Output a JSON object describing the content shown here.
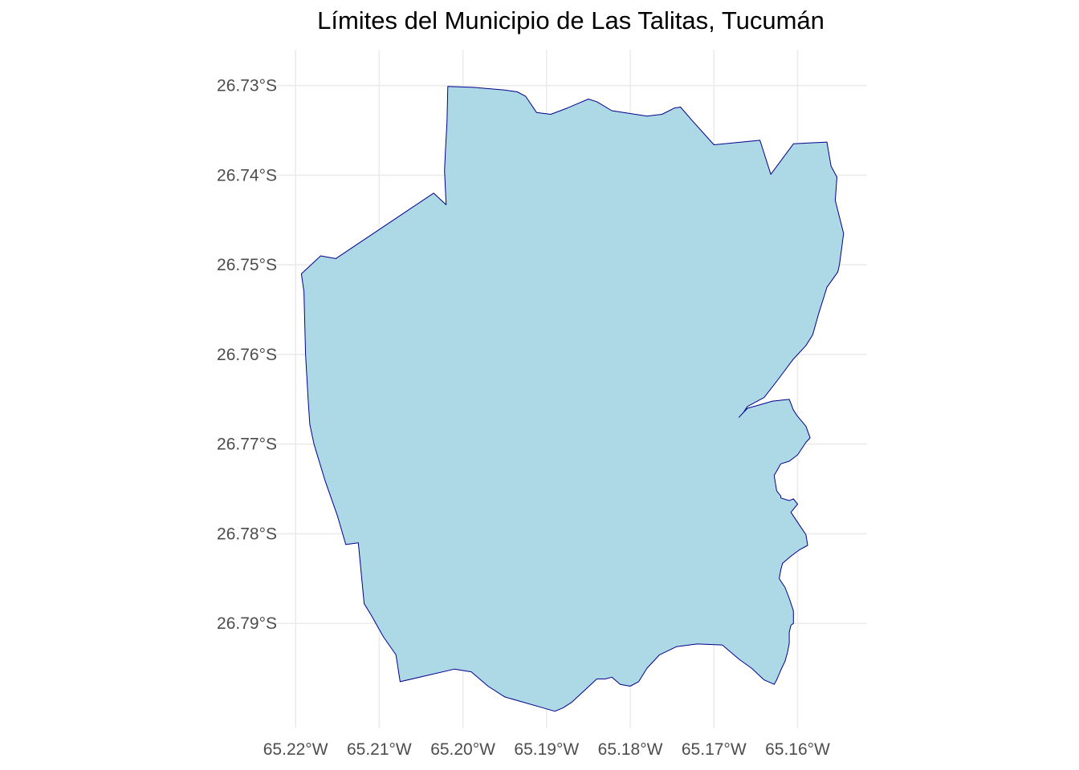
{
  "title": "Límites del Municipio de Las Talitas, Tucumán",
  "colors": {
    "fill": "#add8e6",
    "border": "#00008b",
    "grid": "#ebebeb",
    "tick_text": "#4d4d4d",
    "background": "#ffffff"
  },
  "axes": {
    "x_ticks": [
      "65.22°W",
      "65.21°W",
      "65.20°W",
      "65.19°W",
      "65.18°W",
      "65.17°W",
      "65.16°W"
    ],
    "y_ticks": [
      "26.73°S",
      "26.74°S",
      "26.75°S",
      "26.76°S",
      "26.77°S",
      "26.78°S",
      "26.79°S"
    ],
    "x_range": [
      -65.2227,
      -65.1517
    ],
    "y_range": [
      -26.8017,
      -26.726
    ],
    "grid": true
  },
  "boundary": {
    "name": "Las Talitas",
    "lon": [
      -65.2018,
      -65.1988,
      -65.195,
      -65.1935,
      -65.1925,
      -65.1912,
      -65.1895,
      -65.1875,
      -65.185,
      -65.184,
      -65.1822,
      -65.1808,
      -65.178,
      -65.1762,
      -65.1747,
      -65.174,
      -65.1725,
      -65.17,
      -65.1645,
      -65.1632,
      -65.1605,
      -65.1565,
      -65.156,
      -65.1553,
      -65.1555,
      -65.1545,
      -65.155,
      -65.1552,
      -65.1565,
      -65.157,
      -65.1575,
      -65.1582,
      -65.159,
      -65.1605,
      -65.1625,
      -65.164,
      -65.166,
      -65.1665,
      -65.167,
      -65.1665,
      -65.166,
      -65.1645,
      -65.163,
      -65.161,
      -65.1605,
      -65.16,
      -65.159,
      -65.1585,
      -65.159,
      -65.16,
      -65.161,
      -65.162,
      -65.1628,
      -65.1625,
      -65.162,
      -65.162,
      -65.161,
      -65.1605,
      -65.16,
      -65.1608,
      -65.1598,
      -65.159,
      -65.1588,
      -65.1598,
      -65.1608,
      -65.1618,
      -65.162,
      -65.1622,
      -65.1615,
      -65.161,
      -65.1605,
      -65.1605,
      -65.1605,
      -65.1608,
      -65.161,
      -65.161,
      -65.1612,
      -65.1615,
      -65.162,
      -65.1625,
      -65.1628,
      -65.164,
      -65.1655,
      -65.167,
      -65.169,
      -65.172,
      -65.1745,
      -65.1765,
      -65.178,
      -65.179,
      -65.18,
      -65.1812,
      -65.1822,
      -65.183,
      -65.184,
      -65.1855,
      -65.187,
      -65.188,
      -65.189,
      -65.1905,
      -65.195,
      -65.197,
      -65.199,
      -65.201,
      -65.2075,
      -65.208,
      -65.2095,
      -65.211,
      -65.2118,
      -65.2125,
      -65.214,
      -65.215,
      -65.2165,
      -65.2178,
      -65.2183,
      -65.2185,
      -65.2188,
      -65.219,
      -65.2193,
      -65.217,
      -65.2152,
      -65.2035,
      -65.202,
      -65.2022,
      -65.2021,
      -65.2019,
      -65.2018
    ],
    "lat": [
      -26.7301,
      -26.7302,
      -26.7305,
      -26.7307,
      -26.7312,
      -26.733,
      -26.7332,
      -26.7325,
      -26.7315,
      -26.7318,
      -26.7328,
      -26.733,
      -26.7334,
      -26.7332,
      -26.7325,
      -26.7324,
      -26.734,
      -26.7366,
      -26.7361,
      -26.7399,
      -26.7365,
      -26.7363,
      -26.739,
      -26.7402,
      -26.7428,
      -26.7465,
      -26.75,
      -26.7508,
      -26.7525,
      -26.754,
      -26.7555,
      -26.7578,
      -26.759,
      -26.7605,
      -26.763,
      -26.7648,
      -26.7658,
      -26.7665,
      -26.767,
      -26.7665,
      -26.766,
      -26.7656,
      -26.7652,
      -26.765,
      -26.7662,
      -26.7669,
      -26.768,
      -26.7693,
      -26.7698,
      -26.7712,
      -26.7719,
      -26.7722,
      -26.7735,
      -26.7752,
      -26.7758,
      -26.776,
      -26.7763,
      -26.7761,
      -26.7767,
      -26.7776,
      -26.779,
      -26.7801,
      -26.7813,
      -26.7818,
      -26.7825,
      -26.7833,
      -26.784,
      -26.785,
      -26.786,
      -26.7872,
      -26.7886,
      -26.7893,
      -26.79,
      -26.7902,
      -26.791,
      -26.7922,
      -26.7932,
      -26.7942,
      -26.7952,
      -26.7963,
      -26.7968,
      -26.7963,
      -26.795,
      -26.794,
      -26.7924,
      -26.7923,
      -26.7926,
      -26.7935,
      -26.795,
      -26.7965,
      -26.797,
      -26.7968,
      -26.796,
      -26.7962,
      -26.7962,
      -26.7975,
      -26.7988,
      -26.7994,
      -26.7998,
      -26.7994,
      -26.7982,
      -26.797,
      -26.7954,
      -26.7951,
      -26.7965,
      -26.7935,
      -26.7915,
      -26.789,
      -26.7878,
      -26.781,
      -26.7812,
      -26.778,
      -26.774,
      -26.77,
      -26.7678,
      -26.765,
      -26.76,
      -26.753,
      -26.751,
      -26.749,
      -26.7493,
      -26.742,
      -26.7433,
      -26.7395,
      -26.7375,
      -26.734,
      -26.7301
    ]
  }
}
